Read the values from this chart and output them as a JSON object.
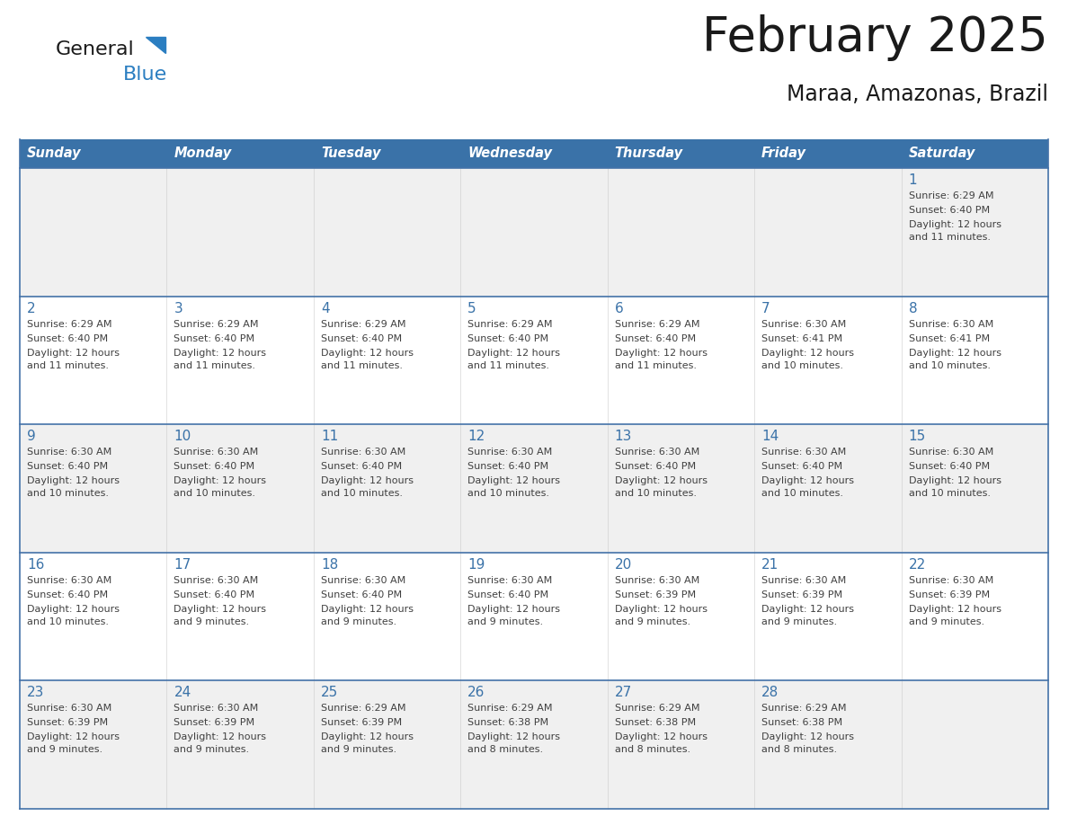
{
  "title": "February 2025",
  "subtitle": "Maraa, Amazonas, Brazil",
  "days_of_week": [
    "Sunday",
    "Monday",
    "Tuesday",
    "Wednesday",
    "Thursday",
    "Friday",
    "Saturday"
  ],
  "header_bg": "#3A72A8",
  "header_text": "#FFFFFF",
  "row_bg_odd": "#F0F0F0",
  "row_bg_even": "#FFFFFF",
  "cell_border": "#4472A8",
  "day_num_color": "#3A72A8",
  "text_color": "#404040",
  "title_color": "#1a1a1a",
  "logo_general_color": "#1a1a1a",
  "logo_blue_color": "#2B7EC1",
  "calendar_data": [
    [
      null,
      null,
      null,
      null,
      null,
      null,
      {
        "day": 1,
        "sunrise": "6:29 AM",
        "sunset": "6:40 PM",
        "daylight": "12 hours and 11 minutes."
      }
    ],
    [
      {
        "day": 2,
        "sunrise": "6:29 AM",
        "sunset": "6:40 PM",
        "daylight": "12 hours and 11 minutes."
      },
      {
        "day": 3,
        "sunrise": "6:29 AM",
        "sunset": "6:40 PM",
        "daylight": "12 hours and 11 minutes."
      },
      {
        "day": 4,
        "sunrise": "6:29 AM",
        "sunset": "6:40 PM",
        "daylight": "12 hours and 11 minutes."
      },
      {
        "day": 5,
        "sunrise": "6:29 AM",
        "sunset": "6:40 PM",
        "daylight": "12 hours and 11 minutes."
      },
      {
        "day": 6,
        "sunrise": "6:29 AM",
        "sunset": "6:40 PM",
        "daylight": "12 hours and 11 minutes."
      },
      {
        "day": 7,
        "sunrise": "6:30 AM",
        "sunset": "6:41 PM",
        "daylight": "12 hours and 10 minutes."
      },
      {
        "day": 8,
        "sunrise": "6:30 AM",
        "sunset": "6:41 PM",
        "daylight": "12 hours and 10 minutes."
      }
    ],
    [
      {
        "day": 9,
        "sunrise": "6:30 AM",
        "sunset": "6:40 PM",
        "daylight": "12 hours and 10 minutes."
      },
      {
        "day": 10,
        "sunrise": "6:30 AM",
        "sunset": "6:40 PM",
        "daylight": "12 hours and 10 minutes."
      },
      {
        "day": 11,
        "sunrise": "6:30 AM",
        "sunset": "6:40 PM",
        "daylight": "12 hours and 10 minutes."
      },
      {
        "day": 12,
        "sunrise": "6:30 AM",
        "sunset": "6:40 PM",
        "daylight": "12 hours and 10 minutes."
      },
      {
        "day": 13,
        "sunrise": "6:30 AM",
        "sunset": "6:40 PM",
        "daylight": "12 hours and 10 minutes."
      },
      {
        "day": 14,
        "sunrise": "6:30 AM",
        "sunset": "6:40 PM",
        "daylight": "12 hours and 10 minutes."
      },
      {
        "day": 15,
        "sunrise": "6:30 AM",
        "sunset": "6:40 PM",
        "daylight": "12 hours and 10 minutes."
      }
    ],
    [
      {
        "day": 16,
        "sunrise": "6:30 AM",
        "sunset": "6:40 PM",
        "daylight": "12 hours and 10 minutes."
      },
      {
        "day": 17,
        "sunrise": "6:30 AM",
        "sunset": "6:40 PM",
        "daylight": "12 hours and 9 minutes."
      },
      {
        "day": 18,
        "sunrise": "6:30 AM",
        "sunset": "6:40 PM",
        "daylight": "12 hours and 9 minutes."
      },
      {
        "day": 19,
        "sunrise": "6:30 AM",
        "sunset": "6:40 PM",
        "daylight": "12 hours and 9 minutes."
      },
      {
        "day": 20,
        "sunrise": "6:30 AM",
        "sunset": "6:39 PM",
        "daylight": "12 hours and 9 minutes."
      },
      {
        "day": 21,
        "sunrise": "6:30 AM",
        "sunset": "6:39 PM",
        "daylight": "12 hours and 9 minutes."
      },
      {
        "day": 22,
        "sunrise": "6:30 AM",
        "sunset": "6:39 PM",
        "daylight": "12 hours and 9 minutes."
      }
    ],
    [
      {
        "day": 23,
        "sunrise": "6:30 AM",
        "sunset": "6:39 PM",
        "daylight": "12 hours and 9 minutes."
      },
      {
        "day": 24,
        "sunrise": "6:30 AM",
        "sunset": "6:39 PM",
        "daylight": "12 hours and 9 minutes."
      },
      {
        "day": 25,
        "sunrise": "6:29 AM",
        "sunset": "6:39 PM",
        "daylight": "12 hours and 9 minutes."
      },
      {
        "day": 26,
        "sunrise": "6:29 AM",
        "sunset": "6:38 PM",
        "daylight": "12 hours and 8 minutes."
      },
      {
        "day": 27,
        "sunrise": "6:29 AM",
        "sunset": "6:38 PM",
        "daylight": "12 hours and 8 minutes."
      },
      {
        "day": 28,
        "sunrise": "6:29 AM",
        "sunset": "6:38 PM",
        "daylight": "12 hours and 8 minutes."
      },
      null
    ]
  ]
}
